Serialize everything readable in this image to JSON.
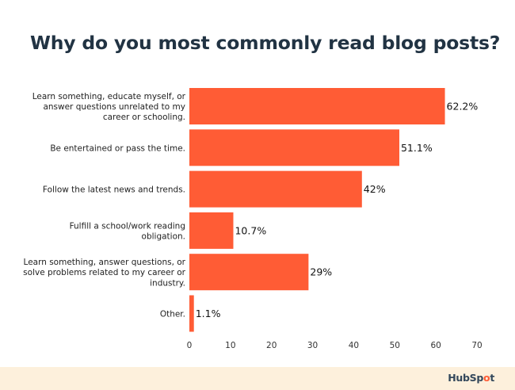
{
  "title": "Why do you most commonly read blog posts?",
  "footer": {
    "logo_text_a": "HubSp",
    "logo_text_o": "o",
    "logo_text_b": "t"
  },
  "colors": {
    "bar": "#ff5c35",
    "title": "#213343",
    "footer_bg": "#fdf0dc"
  },
  "chart_data": {
    "type": "bar",
    "orientation": "horizontal",
    "categories": [
      [
        "Learn something, educate myself, or",
        "answer questions unrelated to my",
        "career or schooling."
      ],
      [
        "Be entertained or pass the time."
      ],
      [
        "Follow the latest news and trends."
      ],
      [
        "Fulfill a school/work reading",
        "obligation."
      ],
      [
        "Learn something, answer questions, or",
        "solve problems related to my career or",
        "industry."
      ],
      [
        "Other."
      ]
    ],
    "values": [
      62.2,
      51.1,
      42,
      10.7,
      29,
      1.1
    ],
    "value_labels": [
      "62.2%",
      "51.1%",
      "42%",
      "10.7%",
      "29%",
      "1.1%"
    ],
    "xlim": [
      0,
      70
    ],
    "xticks": [
      0,
      10,
      20,
      30,
      40,
      50,
      60,
      70
    ],
    "grid": false,
    "legend": "none"
  }
}
